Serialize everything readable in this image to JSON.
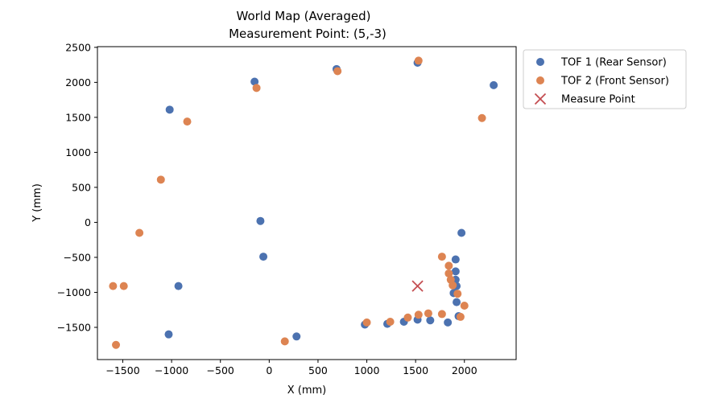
{
  "chart_data": {
    "type": "scatter",
    "title": "World Map (Averaged)",
    "subtitle": "Measurement Point: (5,-3)",
    "xlabel": "X (mm)",
    "ylabel": "Y (mm)",
    "xlim": [
      -1760,
      2530
    ],
    "ylim": [
      -1960,
      2510
    ],
    "xticks": [
      -1500,
      -1000,
      -500,
      0,
      500,
      1000,
      1500,
      2000
    ],
    "yticks": [
      -1500,
      -1000,
      -500,
      0,
      500,
      1000,
      1500,
      2000,
      2500
    ],
    "xtick_labels": [
      "−1500",
      "−1000",
      "−500",
      "0",
      "500",
      "1000",
      "1500",
      "2000"
    ],
    "ytick_labels": [
      "−1500",
      "−1000",
      "−500",
      "0",
      "500",
      "1000",
      "1500",
      "2000",
      "2500"
    ],
    "grid": false,
    "legend_position": "outside-top-right",
    "series": [
      {
        "name": "TOF 1 (Rear Sensor)",
        "color": "#4c72b0",
        "marker": "circle",
        "points": [
          [
            -1020,
            1610
          ],
          [
            -150,
            2010
          ],
          [
            690,
            2190
          ],
          [
            1520,
            2280
          ],
          [
            2300,
            1960
          ],
          [
            -90,
            20
          ],
          [
            -60,
            -490
          ],
          [
            -930,
            -910
          ],
          [
            -1030,
            -1600
          ],
          [
            280,
            -1630
          ],
          [
            1970,
            -150
          ],
          [
            1910,
            -530
          ],
          [
            1910,
            -700
          ],
          [
            1910,
            -820
          ],
          [
            1920,
            -910
          ],
          [
            1890,
            -1010
          ],
          [
            1920,
            -1140
          ],
          [
            1940,
            -1340
          ],
          [
            1830,
            -1430
          ],
          [
            1650,
            -1400
          ],
          [
            1520,
            -1390
          ],
          [
            1380,
            -1420
          ],
          [
            1210,
            -1450
          ],
          [
            980,
            -1460
          ]
        ]
      },
      {
        "name": "TOF 2 (Front Sensor)",
        "color": "#dd8452",
        "marker": "circle",
        "points": [
          [
            -840,
            1440
          ],
          [
            -130,
            1920
          ],
          [
            700,
            2160
          ],
          [
            1530,
            2310
          ],
          [
            2180,
            1490
          ],
          [
            -1110,
            610
          ],
          [
            -1330,
            -150
          ],
          [
            -1600,
            -910
          ],
          [
            -1490,
            -910
          ],
          [
            -1570,
            -1750
          ],
          [
            160,
            -1700
          ],
          [
            1000,
            -1430
          ],
          [
            1240,
            -1420
          ],
          [
            1420,
            -1360
          ],
          [
            1530,
            -1320
          ],
          [
            1630,
            -1300
          ],
          [
            1770,
            -1310
          ],
          [
            1960,
            -1350
          ],
          [
            2000,
            -1190
          ],
          [
            1930,
            -1020
          ],
          [
            1880,
            -900
          ],
          [
            1860,
            -820
          ],
          [
            1840,
            -730
          ],
          [
            1840,
            -620
          ],
          [
            1770,
            -490
          ]
        ]
      },
      {
        "name": "Measure Point",
        "color": "#c44e52",
        "marker": "x",
        "points": [
          [
            1520,
            -910
          ]
        ]
      }
    ]
  }
}
